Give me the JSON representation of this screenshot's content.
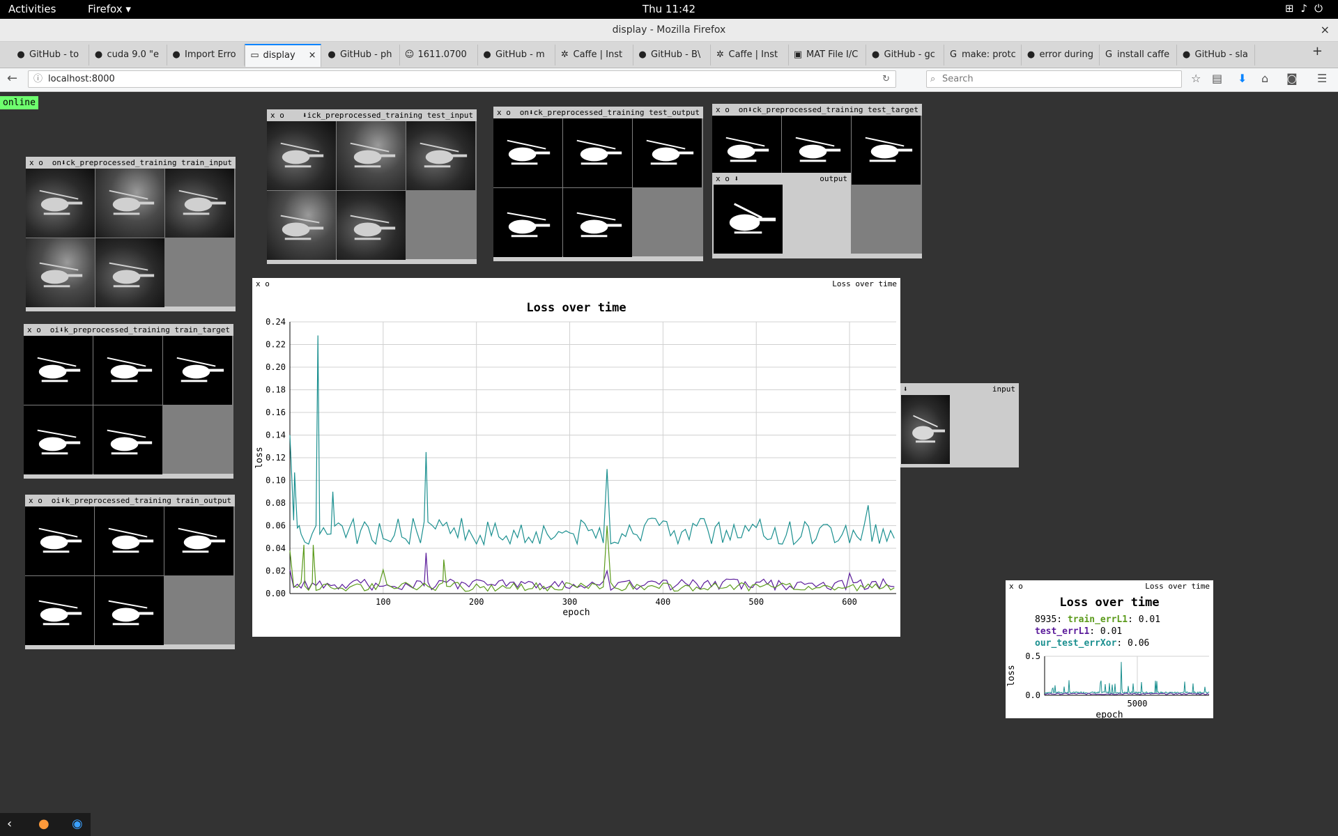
{
  "topbar": {
    "activities": "Activities",
    "app_menu": "Firefox ▾",
    "clock": "Thu 11:42",
    "tray_icons": [
      "network-icon",
      "volume-icon",
      "power-icon"
    ]
  },
  "window": {
    "title": "display - Mozilla Firefox",
    "close": "×"
  },
  "tabs": [
    {
      "label": "GitHub - to",
      "icon": "github-icon"
    },
    {
      "label": "cuda 9.0 \"e",
      "icon": "github-icon"
    },
    {
      "label": "Import Erro",
      "icon": "github-icon"
    },
    {
      "label": "display",
      "icon": "page-icon",
      "active": true
    },
    {
      "label": "GitHub - ph",
      "icon": "github-icon"
    },
    {
      "label": "1611.0700",
      "icon": "arxiv-icon"
    },
    {
      "label": "GitHub - m",
      "icon": "github-icon"
    },
    {
      "label": "Caffe | Inst",
      "icon": "caffe-icon"
    },
    {
      "label": "GitHub - B\\",
      "icon": "github-icon"
    },
    {
      "label": "Caffe | Inst",
      "icon": "caffe-icon"
    },
    {
      "label": "MAT File I/C",
      "icon": "sf-icon"
    },
    {
      "label": "GitHub - gc",
      "icon": "github-icon"
    },
    {
      "label": "make: protc",
      "icon": "google-icon"
    },
    {
      "label": "error during",
      "icon": "github-icon"
    },
    {
      "label": "install caffe",
      "icon": "google-icon"
    },
    {
      "label": "GitHub - sla",
      "icon": "github-icon"
    }
  ],
  "tab_close": "×",
  "new_tab": "+",
  "navbar": {
    "url": "localhost:8000",
    "search_placeholder": "Search"
  },
  "status": "online",
  "panels": {
    "train_input": {
      "controls": "x  o",
      "title": "on⬇ck_preprocessed_training train_input"
    },
    "train_target": {
      "controls": "x  o",
      "title": "oi⬇k_preprocessed_training train_target"
    },
    "train_output": {
      "controls": "x  o",
      "title": "oi⬇k_preprocessed_training train_output"
    },
    "test_input": {
      "controls": "x  o",
      "title": "⬇ick_preprocessed_training test_input"
    },
    "test_output": {
      "controls": "x  o",
      "title": "on⬇ck_preprocessed_training test_output"
    },
    "test_target": {
      "controls": "x  o",
      "title": "on⬇ck_preprocessed_training test_target"
    },
    "output": {
      "controls": "x  o  ⬇",
      "title": "output"
    },
    "input": {
      "controls": "⬇",
      "title": "input"
    },
    "loss_main": {
      "controls": "x  o",
      "title": "Loss over time"
    },
    "loss_mini": {
      "controls": "x  o",
      "title": "Loss over time"
    }
  },
  "chart_data": [
    {
      "type": "line",
      "title": "Loss over time",
      "xlabel": "epoch",
      "ylabel": "loss",
      "xlim": [
        0,
        650
      ],
      "ylim": [
        0,
        0.24
      ],
      "xticks": [
        100,
        200,
        300,
        400,
        500,
        600
      ],
      "yticks": [
        "0.00",
        "0.02",
        "0.04",
        "0.06",
        "0.08",
        "0.10",
        "0.12",
        "0.14",
        "0.16",
        "0.18",
        "0.20",
        "0.22",
        "0.24"
      ],
      "grid": true,
      "series": [
        {
          "name": "our_test_errXor",
          "color": "#1a8f8f",
          "base": 0.055,
          "noise": 0.012,
          "spikes": [
            [
              0,
              0.14
            ],
            [
              5,
              0.107
            ],
            [
              10,
              0.06
            ],
            [
              30,
              0.228
            ],
            [
              46,
              0.09
            ],
            [
              146,
              0.125
            ],
            [
              340,
              0.11
            ],
            [
              620,
              0.078
            ]
          ]
        },
        {
          "name": "test_errL1",
          "color": "#5a1a9a",
          "base": 0.008,
          "noise": 0.005,
          "spikes": [
            [
              0,
              0.021
            ],
            [
              146,
              0.036
            ],
            [
              340,
              0.02
            ],
            [
              600,
              0.018
            ]
          ]
        },
        {
          "name": "train_errL1",
          "color": "#5a9a1a",
          "base": 0.006,
          "noise": 0.004,
          "spikes": [
            [
              0,
              0.038
            ],
            [
              15,
              0.043
            ],
            [
              25,
              0.043
            ],
            [
              100,
              0.021
            ],
            [
              165,
              0.03
            ],
            [
              340,
              0.06
            ]
          ]
        }
      ]
    },
    {
      "type": "line",
      "title": "Loss over time",
      "xlabel": "epoch",
      "ylabel": "loss",
      "xticks": [
        5000
      ],
      "yticks": [
        "0.0",
        "0.5"
      ],
      "legend": [
        {
          "prefix": "8935: ",
          "name": "train_errL1",
          "value": ": 0.01",
          "color": "#5a9a1a"
        },
        {
          "prefix": "",
          "name": "test_errL1",
          "value": ": 0.01",
          "color": "#5a1a9a"
        },
        {
          "prefix": "",
          "name": "our_test_errXor",
          "value": ": 0.06",
          "color": "#1a8f8f"
        }
      ]
    }
  ],
  "dock_icons": [
    "back-arrow-icon",
    "firefox-icon",
    "teamviewer-icon"
  ]
}
